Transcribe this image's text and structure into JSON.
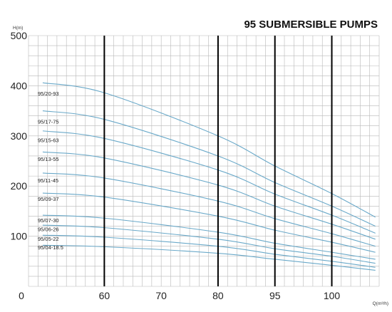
{
  "chart_data": {
    "type": "line",
    "title": "95 SUBMERSIBLE PUMPS",
    "ylabel": "H(m)",
    "xlabel": "Q(m³/h)",
    "x_origin_label": "0",
    "x_ticks": [
      {
        "x": 60,
        "label": "60"
      },
      {
        "x": 70,
        "label": "70"
      },
      {
        "x": 80,
        "label": "80"
      },
      {
        "x": 95,
        "label": "95"
      },
      {
        "x": 100,
        "label": "100"
      }
    ],
    "y_ticks": [
      {
        "y": 100,
        "label": "100"
      },
      {
        "y": 200,
        "label": "200"
      },
      {
        "y": 300,
        "label": "300"
      },
      {
        "y": 400,
        "label": "400"
      },
      {
        "y": 500,
        "label": "500"
      }
    ],
    "ylim": [
      0,
      500
    ],
    "x_positions": {
      "60": 0.2162,
      "70": 0.3784,
      "80": 0.5405,
      "95": 0.7027,
      "100": 0.8649
    },
    "grid": true,
    "highlight_verticals": [
      60,
      80,
      95,
      100
    ],
    "curve_span": {
      "start": 0.0405,
      "end": 0.9892
    },
    "series": [
      {
        "name": "95/20-93",
        "label_y": 385,
        "points": [
          [
            0.0405,
            406
          ],
          [
            0.2162,
            386
          ],
          [
            0.5405,
            300
          ],
          [
            0.7027,
            240
          ],
          [
            0.8649,
            185
          ],
          [
            0.9892,
            138
          ]
        ]
      },
      {
        "name": "95/17-75",
        "label_y": 329,
        "points": [
          [
            0.0405,
            350
          ],
          [
            0.2162,
            333
          ],
          [
            0.5405,
            260
          ],
          [
            0.7027,
            207
          ],
          [
            0.8649,
            160
          ],
          [
            0.9892,
            120
          ]
        ]
      },
      {
        "name": "95/15-63",
        "label_y": 292,
        "points": [
          [
            0.0405,
            310
          ],
          [
            0.2162,
            295
          ],
          [
            0.5405,
            232
          ],
          [
            0.7027,
            184
          ],
          [
            0.8649,
            142
          ],
          [
            0.9892,
            106
          ]
        ]
      },
      {
        "name": "95/13-55",
        "label_y": 254,
        "points": [
          [
            0.0405,
            268
          ],
          [
            0.2162,
            256
          ],
          [
            0.5405,
            202
          ],
          [
            0.7027,
            160
          ],
          [
            0.8649,
            124
          ],
          [
            0.9892,
            94
          ]
        ]
      },
      {
        "name": "95/11-45",
        "label_y": 212,
        "points": [
          [
            0.0405,
            226
          ],
          [
            0.2162,
            216
          ],
          [
            0.5405,
            170
          ],
          [
            0.7027,
            135
          ],
          [
            0.8649,
            105
          ],
          [
            0.9892,
            80
          ]
        ]
      },
      {
        "name": "95/09-37",
        "label_y": 175,
        "points": [
          [
            0.0405,
            186
          ],
          [
            0.2162,
            178
          ],
          [
            0.5405,
            140
          ],
          [
            0.7027,
            112
          ],
          [
            0.8649,
            88
          ],
          [
            0.9892,
            68
          ]
        ]
      },
      {
        "name": "95/07-30",
        "label_y": 132,
        "points": [
          [
            0.0405,
            142
          ],
          [
            0.2162,
            136
          ],
          [
            0.5405,
            108
          ],
          [
            0.7027,
            86
          ],
          [
            0.8649,
            68
          ],
          [
            0.9892,
            54
          ]
        ]
      },
      {
        "name": "95/06-26",
        "label_y": 114,
        "points": [
          [
            0.0405,
            122
          ],
          [
            0.2162,
            117
          ],
          [
            0.5405,
            94
          ],
          [
            0.7027,
            75
          ],
          [
            0.8649,
            60
          ],
          [
            0.9892,
            46
          ]
        ]
      },
      {
        "name": "95/05-22",
        "label_y": 95,
        "points": [
          [
            0.0405,
            102
          ],
          [
            0.2162,
            98
          ],
          [
            0.5405,
            80
          ],
          [
            0.7027,
            64
          ],
          [
            0.8649,
            50
          ],
          [
            0.9892,
            38
          ]
        ]
      },
      {
        "name": "95/04-18.5",
        "label_y": 78,
        "points": [
          [
            0.0405,
            82
          ],
          [
            0.2162,
            79
          ],
          [
            0.5405,
            66
          ],
          [
            0.7027,
            54
          ],
          [
            0.8649,
            42
          ],
          [
            0.9892,
            32
          ]
        ]
      }
    ],
    "colors": {
      "grid": "#b8b8b8",
      "curve": "#6aa9c9",
      "highlight": "#000000",
      "text": "#222222"
    }
  }
}
